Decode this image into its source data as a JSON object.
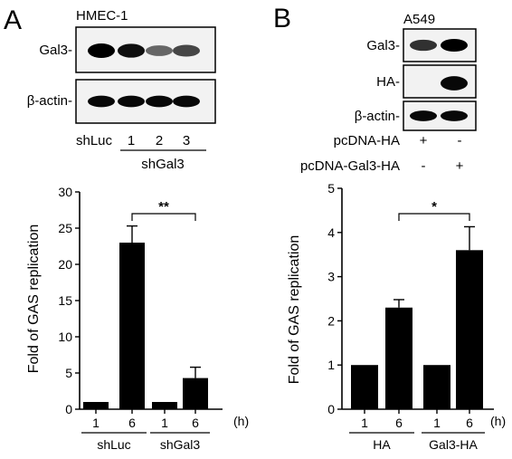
{
  "panel_a": {
    "letter": "A",
    "cell_line": "HMEC-1",
    "blot_labels": [
      "Gal3-",
      "β-actin-"
    ],
    "lane_group_left": "shLuc",
    "lane_numbers": [
      "1",
      "2",
      "3"
    ],
    "lane_group_right": "shGal3",
    "band_intensity": {
      "Gal3": [
        1.0,
        0.9,
        0.35,
        0.55
      ],
      "beta_actin": [
        0.95,
        0.95,
        0.95,
        0.95
      ]
    }
  },
  "panel_b": {
    "letter": "B",
    "cell_line": "A549",
    "blot_labels": [
      "Gal3-",
      "HA-",
      "β-actin-"
    ],
    "treatment_rows": [
      {
        "label": "pcDNA-HA",
        "signs": [
          "+",
          "-"
        ]
      },
      {
        "label": "pcDNA-Gal3-HA",
        "signs": [
          "-",
          "+"
        ]
      }
    ],
    "band_intensity": {
      "Gal3": [
        0.7,
        1.0
      ],
      "HA": [
        0.0,
        0.95
      ],
      "beta_actin": [
        0.95,
        0.95
      ]
    }
  },
  "chart_data": [
    {
      "type": "bar",
      "ylabel": "Fold of GAS replication",
      "xunit": "(h)",
      "ylim": [
        0,
        30
      ],
      "yticks": [
        "0",
        "5",
        "10",
        "15",
        "20",
        "25",
        "30"
      ],
      "categories": [
        "1",
        "6",
        "1",
        "6"
      ],
      "groups": [
        "shLuc",
        "shGal3"
      ],
      "values": [
        1.0,
        23.0,
        1.0,
        4.3
      ],
      "errors": [
        0,
        2.3,
        0,
        1.5
      ],
      "significance": {
        "text": "**",
        "between": [
          1,
          3
        ]
      }
    },
    {
      "type": "bar",
      "ylabel": "Fold of GAS replication",
      "xunit": "(h)",
      "ylim": [
        0,
        5
      ],
      "yticks": [
        "0",
        "1",
        "2",
        "3",
        "4",
        "5"
      ],
      "categories": [
        "1",
        "6",
        "1",
        "6"
      ],
      "groups": [
        "HA",
        "Gal3-HA"
      ],
      "values": [
        1.0,
        2.3,
        1.0,
        3.6
      ],
      "errors": [
        0,
        0.18,
        0,
        0.53
      ],
      "significance": {
        "text": "*",
        "between": [
          1,
          3
        ]
      }
    }
  ]
}
